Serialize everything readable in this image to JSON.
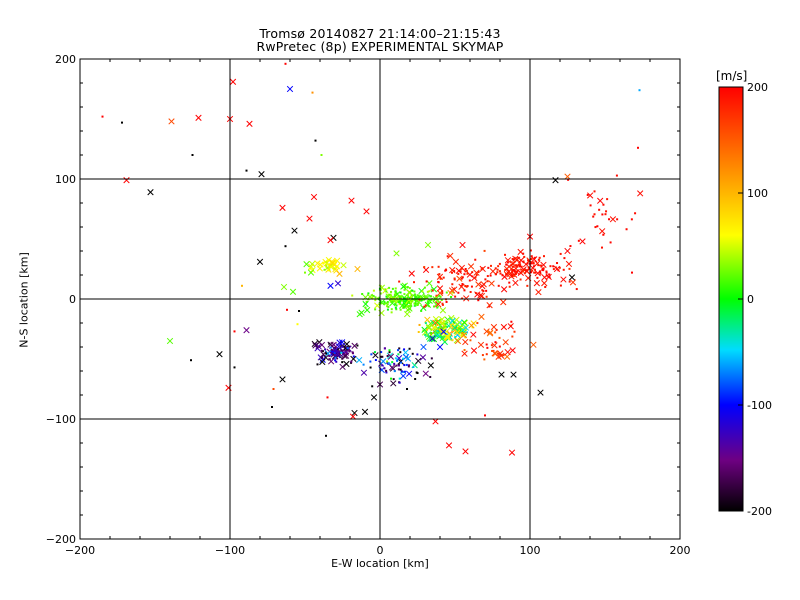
{
  "title": {
    "line1": "Tromsø 20140827 21:14:00–21:15:43",
    "line2": "RwPretec (8p) EXPERIMENTAL SKYMAP"
  },
  "colorbar": {
    "units": "[m/s]",
    "range": [
      -200,
      200
    ],
    "tick_labels": [
      "200",
      "100",
      "0",
      "-100",
      "-200"
    ],
    "tick_values": [
      200,
      100,
      0,
      -100,
      -200
    ],
    "colors": [
      "#000000",
      "#6a0080",
      "#0000ff",
      "#00ffff",
      "#00ff00",
      "#ffff00",
      "#ffa000",
      "#ff0000"
    ]
  },
  "chart_data": {
    "type": "scatter",
    "title": "Tromsø 20140827 21:14:00–21:15:43 RwPretec (8p) EXPERIMENTAL SKYMAP",
    "xlabel": "E-W location [km]",
    "ylabel": "N-S location [km]",
    "xlim": [
      -200,
      200
    ],
    "ylim": [
      -200,
      200
    ],
    "x_ticks": [
      -200,
      -100,
      0,
      100,
      200
    ],
    "y_ticks": [
      -200,
      -100,
      0,
      100,
      200
    ],
    "x_tick_labels": [
      "−200",
      "−100",
      "0",
      "100",
      "200"
    ],
    "y_tick_labels": [
      "−200",
      "−100",
      "0",
      "100",
      "200"
    ],
    "grid": true,
    "color_scale": {
      "label": "[m/s]",
      "min": -200,
      "max": 200
    },
    "markers": [
      "dot",
      "cross"
    ],
    "clusters": [
      {
        "description": "",
        "center": [
          15,
          0
        ],
        "spread": [
          18,
          7
        ],
        "count": 220,
        "velocity_mean": 20,
        "velocity_spread": 20,
        "marker": "dot"
      },
      {
        "description": "",
        "center": [
          100,
          25
        ],
        "spread": [
          18,
          9
        ],
        "count": 140,
        "velocity_mean": 190,
        "velocity_spread": 10,
        "marker": "dot"
      },
      {
        "description": "",
        "center": [
          55,
          15
        ],
        "spread": [
          25,
          15
        ],
        "count": 110,
        "velocity_mean": 185,
        "velocity_spread": 15,
        "marker": "dot"
      },
      {
        "description": "",
        "center": [
          45,
          -25
        ],
        "spread": [
          12,
          7
        ],
        "count": 120,
        "velocity_mean": 30,
        "velocity_spread": 70,
        "marker": "cross"
      },
      {
        "description": "",
        "center": [
          -28,
          -45
        ],
        "spread": [
          10,
          7
        ],
        "count": 100,
        "velocity_mean": -150,
        "velocity_spread": 60,
        "marker": "cross"
      },
      {
        "description": "",
        "center": [
          10,
          -55
        ],
        "spread": [
          15,
          10
        ],
        "count": 90,
        "velocity_mean": -120,
        "velocity_spread": 80,
        "marker": "dot"
      },
      {
        "description": "",
        "center": [
          -32,
          28
        ],
        "spread": [
          10,
          3
        ],
        "count": 35,
        "velocity_mean": 60,
        "velocity_spread": 20,
        "marker": "cross"
      },
      {
        "description": "",
        "center": [
          75,
          -35
        ],
        "spread": [
          15,
          12
        ],
        "count": 45,
        "velocity_mean": 170,
        "velocity_spread": 30,
        "marker": "cross"
      },
      {
        "description": "",
        "center": [
          150,
          70
        ],
        "spread": [
          20,
          25
        ],
        "count": 30,
        "velocity_mean": 195,
        "velocity_spread": 5,
        "marker": "dot"
      }
    ],
    "points": [
      {
        "x": -185,
        "y": 152,
        "v": 200,
        "m": "dot"
      },
      {
        "x": -172,
        "y": 147,
        "v": -200,
        "m": "dot"
      },
      {
        "x": -139,
        "y": 148,
        "v": 160,
        "m": "cross"
      },
      {
        "x": -121,
        "y": 151,
        "v": 200,
        "m": "cross"
      },
      {
        "x": -98,
        "y": 181,
        "v": 200,
        "m": "cross"
      },
      {
        "x": -100,
        "y": 150,
        "v": 200,
        "m": "cross"
      },
      {
        "x": -87,
        "y": 146,
        "v": 200,
        "m": "cross"
      },
      {
        "x": -63,
        "y": 196,
        "v": 200,
        "m": "dot"
      },
      {
        "x": -60,
        "y": 175,
        "v": -100,
        "m": "cross"
      },
      {
        "x": -45,
        "y": 172,
        "v": 120,
        "m": "dot"
      },
      {
        "x": -43,
        "y": 132,
        "v": -200,
        "m": "dot"
      },
      {
        "x": -39,
        "y": 120,
        "v": 30,
        "m": "dot"
      },
      {
        "x": -125,
        "y": 120,
        "v": -200,
        "m": "dot"
      },
      {
        "x": -89,
        "y": 107,
        "v": -200,
        "m": "dot"
      },
      {
        "x": -79,
        "y": 104,
        "v": -200,
        "m": "cross"
      },
      {
        "x": -169,
        "y": 99,
        "v": 200,
        "m": "cross"
      },
      {
        "x": -153,
        "y": 89,
        "v": -200,
        "m": "cross"
      },
      {
        "x": 173,
        "y": 174,
        "v": -60,
        "m": "dot"
      },
      {
        "x": 172,
        "y": 126,
        "v": 200,
        "m": "dot"
      },
      {
        "x": 125,
        "y": 102,
        "v": 150,
        "m": "cross"
      },
      {
        "x": 117,
        "y": 99,
        "v": -200,
        "m": "cross"
      },
      {
        "x": -65,
        "y": 76,
        "v": 200,
        "m": "cross"
      },
      {
        "x": -44,
        "y": 85,
        "v": 200,
        "m": "cross"
      },
      {
        "x": -47,
        "y": 67,
        "v": 200,
        "m": "cross"
      },
      {
        "x": -19,
        "y": 82,
        "v": 200,
        "m": "cross"
      },
      {
        "x": -9,
        "y": 73,
        "v": 200,
        "m": "cross"
      },
      {
        "x": -57,
        "y": 57,
        "v": -200,
        "m": "cross"
      },
      {
        "x": -31,
        "y": 51,
        "v": -200,
        "m": "cross"
      },
      {
        "x": -33,
        "y": 49,
        "v": 200,
        "m": "cross"
      },
      {
        "x": -80,
        "y": 31,
        "v": -200,
        "m": "cross"
      },
      {
        "x": -63,
        "y": 44,
        "v": -200,
        "m": "dot"
      },
      {
        "x": -27,
        "y": 21,
        "v": 100,
        "m": "cross"
      },
      {
        "x": -15,
        "y": 25,
        "v": 100,
        "m": "cross"
      },
      {
        "x": -49,
        "y": 29,
        "v": 20,
        "m": "cross"
      },
      {
        "x": -46,
        "y": 22,
        "v": 20,
        "m": "cross"
      },
      {
        "x": -58,
        "y": 6,
        "v": 20,
        "m": "cross"
      },
      {
        "x": -33,
        "y": 11,
        "v": -100,
        "m": "cross"
      },
      {
        "x": -28,
        "y": 13,
        "v": -120,
        "m": "cross"
      },
      {
        "x": -92,
        "y": 11,
        "v": 100,
        "m": "dot"
      },
      {
        "x": -64,
        "y": 10,
        "v": 30,
        "m": "cross"
      },
      {
        "x": -50,
        "y": 22,
        "v": 30,
        "m": "dot"
      },
      {
        "x": -54,
        "y": -10,
        "v": -200,
        "m": "dot"
      },
      {
        "x": -62,
        "y": -9,
        "v": 200,
        "m": "dot"
      },
      {
        "x": -55,
        "y": -21,
        "v": 60,
        "m": "dot"
      },
      {
        "x": -89,
        "y": -26,
        "v": -150,
        "m": "cross"
      },
      {
        "x": -97,
        "y": -27,
        "v": 200,
        "m": "dot"
      },
      {
        "x": -140,
        "y": -35,
        "v": 20,
        "m": "cross"
      },
      {
        "x": -107,
        "y": -46,
        "v": -200,
        "m": "cross"
      },
      {
        "x": -126,
        "y": -51,
        "v": -200,
        "m": "dot"
      },
      {
        "x": -97,
        "y": -57,
        "v": -200,
        "m": "dot"
      },
      {
        "x": -101,
        "y": -74,
        "v": 200,
        "m": "cross"
      },
      {
        "x": -65,
        "y": -67,
        "v": -200,
        "m": "cross"
      },
      {
        "x": -71,
        "y": -75,
        "v": 160,
        "m": "dot"
      },
      {
        "x": -72,
        "y": -90,
        "v": -200,
        "m": "dot"
      },
      {
        "x": -36,
        "y": -114,
        "v": -200,
        "m": "dot"
      },
      {
        "x": -17,
        "y": -95,
        "v": -200,
        "m": "cross"
      },
      {
        "x": -18,
        "y": -98,
        "v": 200,
        "m": "cross"
      },
      {
        "x": -10,
        "y": -94,
        "v": -200,
        "m": "cross"
      },
      {
        "x": -4,
        "y": -82,
        "v": -200,
        "m": "cross"
      },
      {
        "x": -35,
        "y": -82,
        "v": 200,
        "m": "dot"
      },
      {
        "x": 18,
        "y": -75,
        "v": -200,
        "m": "dot"
      },
      {
        "x": 37,
        "y": -102,
        "v": 200,
        "m": "cross"
      },
      {
        "x": 46,
        "y": -122,
        "v": 200,
        "m": "cross"
      },
      {
        "x": 57,
        "y": -127,
        "v": 200,
        "m": "cross"
      },
      {
        "x": 88,
        "y": -128,
        "v": 200,
        "m": "cross"
      },
      {
        "x": 107,
        "y": -78,
        "v": -200,
        "m": "cross"
      },
      {
        "x": 89,
        "y": -63,
        "v": -200,
        "m": "cross"
      },
      {
        "x": 81,
        "y": -63,
        "v": -200,
        "m": "cross"
      },
      {
        "x": 70,
        "y": -97,
        "v": 200,
        "m": "dot"
      },
      {
        "x": 128,
        "y": 18,
        "v": -200,
        "m": "cross"
      },
      {
        "x": 55,
        "y": 45,
        "v": 200,
        "m": "cross"
      },
      {
        "x": 32,
        "y": 45,
        "v": 30,
        "m": "cross"
      },
      {
        "x": 11,
        "y": 38,
        "v": 30,
        "m": "cross"
      },
      {
        "x": 135,
        "y": 48,
        "v": 200,
        "m": "cross"
      },
      {
        "x": 125,
        "y": 40,
        "v": 200,
        "m": "cross"
      },
      {
        "x": 168,
        "y": 22,
        "v": 200,
        "m": "dot"
      },
      {
        "x": 100,
        "y": 52,
        "v": 200,
        "m": "cross"
      },
      {
        "x": 61,
        "y": -22,
        "v": 120,
        "m": "cross"
      },
      {
        "x": 52,
        "y": -35,
        "v": 140,
        "m": "cross"
      },
      {
        "x": 56,
        "y": -30,
        "v": 130,
        "m": "cross"
      },
      {
        "x": 40,
        "y": -40,
        "v": -100,
        "m": "cross"
      },
      {
        "x": 35,
        "y": -33,
        "v": -120,
        "m": "cross"
      },
      {
        "x": 29,
        "y": -40,
        "v": -80,
        "m": "cross"
      },
      {
        "x": 40,
        "y": 5,
        "v": 170,
        "m": "cross"
      },
      {
        "x": 47,
        "y": 5,
        "v": 120,
        "m": "cross"
      },
      {
        "x": 118,
        "y": 25,
        "v": 200,
        "m": "cross"
      }
    ]
  }
}
